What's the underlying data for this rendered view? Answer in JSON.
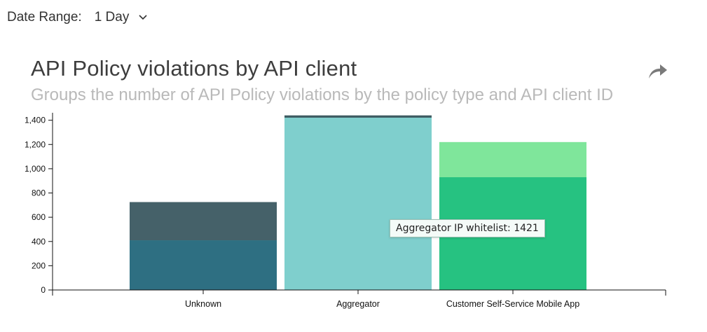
{
  "filter": {
    "label": "Date Range:",
    "value": "1 Day"
  },
  "header": {
    "title": "API Policy violations by API client",
    "subtitle": "Groups the number of API Policy violations by the policy type and API client ID",
    "share_icon": "share-arrow-icon"
  },
  "tooltip": {
    "text": "Aggregator IP whitelist: 1421"
  },
  "chart_data": {
    "type": "bar",
    "stacked": true,
    "categories": [
      "Unknown",
      "Aggregator",
      "Customer Self-Service Mobile App"
    ],
    "ylim": [
      0,
      1450
    ],
    "yticks": [
      0,
      200,
      400,
      600,
      800,
      1000,
      1200,
      1400
    ],
    "ytick_labels": [
      "0",
      "200",
      "400",
      "600",
      "800",
      "1,000",
      "1,200",
      "1,400"
    ],
    "grid": false,
    "stacks": [
      {
        "category": "Unknown",
        "segments": [
          {
            "value": 410,
            "color": "#2e6f82"
          },
          {
            "value": 315,
            "color": "#456169"
          }
        ]
      },
      {
        "category": "Aggregator",
        "segments": [
          {
            "value": 1421,
            "color": "#7fcfcd"
          },
          {
            "value": 19,
            "color": "#3f5d63"
          }
        ]
      },
      {
        "category": "Customer Self-Service Mobile App",
        "segments": [
          {
            "value": 930,
            "color": "#26c281"
          },
          {
            "value": 290,
            "color": "#7fe69b"
          }
        ]
      }
    ]
  }
}
